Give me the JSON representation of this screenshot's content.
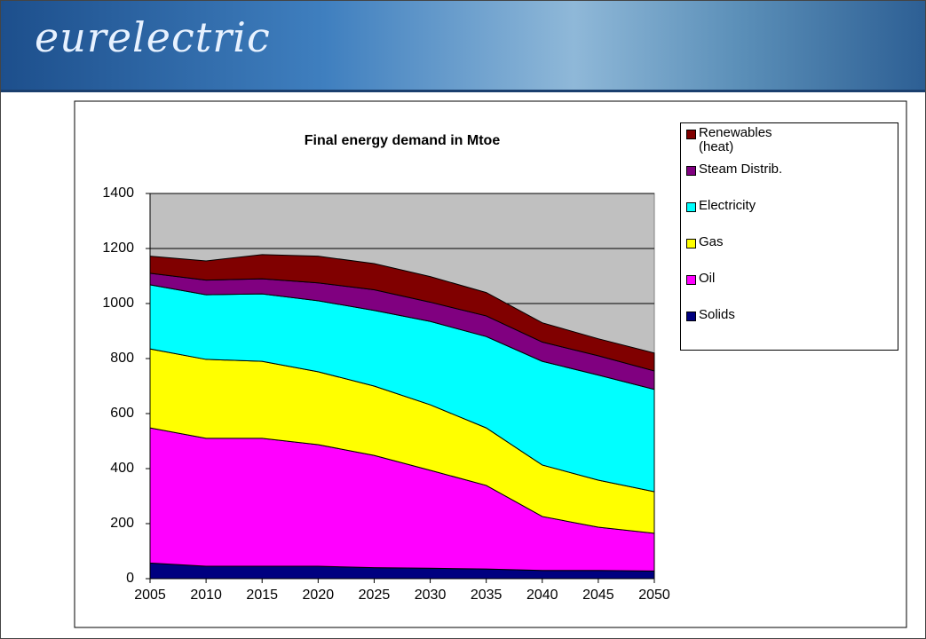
{
  "header": {
    "logo": "eurelectric"
  },
  "chart_data": {
    "type": "stacked_area",
    "title": "Final energy demand in Mtoe",
    "categories": [
      "2005",
      "2010",
      "2015",
      "2020",
      "2025",
      "2030",
      "2035",
      "2040",
      "2045",
      "2050"
    ],
    "series": [
      {
        "name": "Solids",
        "color": "#000080",
        "values": [
          57,
          45,
          45,
          45,
          40,
          38,
          35,
          30,
          30,
          28
        ]
      },
      {
        "name": "Oil",
        "color": "#ff00ff",
        "values": [
          491,
          465,
          465,
          442,
          408,
          356,
          304,
          196,
          157,
          137
        ]
      },
      {
        "name": "Gas",
        "color": "#ffff00",
        "values": [
          287,
          287,
          280,
          265,
          252,
          238,
          209,
          187,
          171,
          151
        ]
      },
      {
        "name": "Electricity",
        "color": "#00ffff",
        "values": [
          233,
          235,
          245,
          258,
          275,
          303,
          332,
          377,
          382,
          372
        ]
      },
      {
        "name": "Steam Distrib.",
        "color": "#800080",
        "values": [
          42,
          53,
          55,
          65,
          75,
          70,
          75,
          70,
          70,
          67
        ]
      },
      {
        "name": "Renewables (heat)",
        "color": "#800000",
        "values": [
          62,
          70,
          88,
          97,
          95,
          93,
          85,
          70,
          62,
          65
        ]
      }
    ],
    "ylim": [
      0,
      1400
    ],
    "yticks": [
      0,
      200,
      400,
      600,
      800,
      1000,
      1200,
      1400
    ],
    "grid": true,
    "legend": "right"
  }
}
